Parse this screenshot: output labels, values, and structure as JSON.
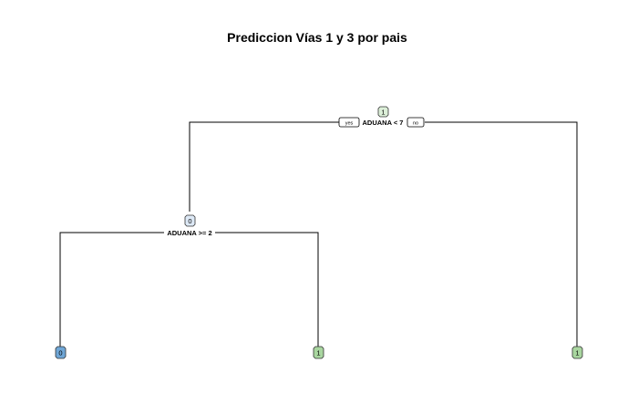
{
  "title": "Prediccion Vías 1 y 3 por pais",
  "colors": {
    "class_0": "#6fa6d6",
    "class_1": "#a9d6a0",
    "class_0_light": "#dde9f6",
    "class_1_light": "#dcefd8"
  },
  "tree": {
    "root": {
      "label": "1",
      "split": "ADUANA < 7",
      "yes_label": "yes",
      "no_label": "no"
    },
    "internal": {
      "label": "0",
      "split": "ADUANA >= 2"
    },
    "leaves": [
      {
        "label": "0"
      },
      {
        "label": "1"
      },
      {
        "label": "1"
      }
    ]
  }
}
